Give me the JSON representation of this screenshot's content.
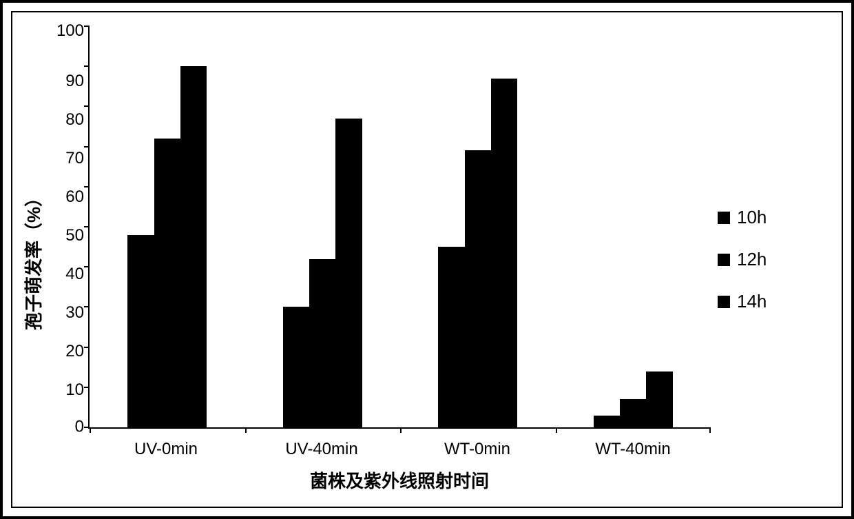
{
  "chart": {
    "type": "bar",
    "y_axis": {
      "title": "孢子萌发率（%）",
      "min": 0,
      "max": 100,
      "step": 10,
      "ticks": [
        100,
        90,
        80,
        70,
        60,
        50,
        40,
        30,
        20,
        10,
        0
      ],
      "label_fontsize": 24,
      "title_fontsize": 26,
      "title_fontweight": "bold"
    },
    "x_axis": {
      "title": "菌株及紫外线照射时间",
      "categories": [
        "UV-0min",
        "UV-40min",
        "WT-0min",
        "WT-40min"
      ],
      "label_fontsize": 24,
      "title_fontsize": 26,
      "title_fontweight": "bold"
    },
    "series": [
      {
        "name": "10h",
        "color": "#000000",
        "values": [
          48,
          30,
          45,
          3
        ]
      },
      {
        "name": "12h",
        "color": "#000000",
        "values": [
          72,
          42,
          69,
          7
        ]
      },
      {
        "name": "14h",
        "color": "#000000",
        "values": [
          90,
          77,
          87,
          14
        ]
      }
    ],
    "legend": {
      "items": [
        "10h",
        "12h",
        "14h"
      ],
      "swatch_color": "#000000",
      "fontsize": 26,
      "position": "right"
    },
    "style": {
      "background_color": "#ffffff",
      "axis_color": "#000000",
      "bar_color": "#000000",
      "outer_border_width": 4,
      "inner_border_width": 2,
      "bar_group_gap_ratio": 0.49,
      "bar_width_ratio": 0.17
    }
  }
}
